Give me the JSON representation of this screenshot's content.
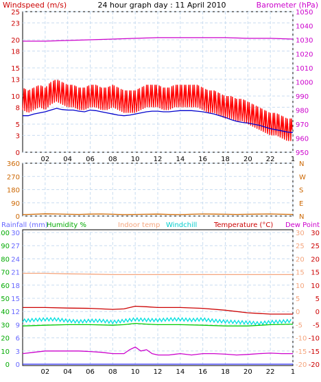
{
  "chart_data": [
    {
      "type": "line",
      "title": "24 hour graph day : 11 April 2010",
      "left_axis_label": "Windspeed (m/s)",
      "right_axis_label": "Barometer (hPa)",
      "x_ticks": [
        "02",
        "04",
        "06",
        "08",
        "10",
        "12",
        "14",
        "16",
        "18",
        "20",
        "22",
        "1"
      ],
      "x_range_hours": [
        0,
        24
      ],
      "left_ticks": [
        "0",
        "3",
        "5",
        "8",
        "10",
        "13",
        "15",
        "18",
        "20",
        "23",
        "25"
      ],
      "left_range": [
        0,
        25
      ],
      "right_ticks": [
        "950",
        "960",
        "970",
        "980",
        "990",
        "1000",
        "1010",
        "1020",
        "1030",
        "1040",
        "1050"
      ],
      "right_range": [
        950,
        1050
      ],
      "grid": true,
      "series": [
        {
          "name": "Windspeed (m/s)",
          "axis": "left",
          "color": "#ff0000",
          "style": "gust",
          "x": [
            0,
            0.5,
            1,
            1.5,
            2,
            2.5,
            3,
            3.5,
            4,
            4.5,
            5,
            5.5,
            6,
            6.5,
            7,
            7.5,
            8,
            8.5,
            9,
            9.5,
            10,
            10.5,
            11,
            11.5,
            12,
            12.5,
            13,
            13.5,
            14,
            14.5,
            15,
            15.5,
            16,
            16.5,
            17,
            17.5,
            18,
            18.5,
            19,
            19.5,
            20,
            20.5,
            21,
            21.5,
            22,
            22.5,
            23,
            23.5,
            24
          ],
          "values": [
            10,
            9.5,
            10,
            10.5,
            10,
            11,
            11.5,
            11,
            10.5,
            10.5,
            10,
            10,
            10.5,
            10.5,
            10,
            10,
            10.5,
            10,
            9.5,
            9.5,
            9.5,
            10,
            10.5,
            10.5,
            10.5,
            10,
            10,
            10.5,
            10.5,
            10.5,
            10.5,
            10.5,
            10,
            9.5,
            9.5,
            9,
            8.5,
            8.5,
            8,
            8,
            7.5,
            7,
            6.5,
            6,
            5.5,
            5.5,
            5,
            4.5,
            4.5
          ]
        },
        {
          "name": "Average windspeed",
          "axis": "left",
          "color": "#0000cc",
          "style": "line",
          "x": [
            0,
            0.5,
            1,
            1.5,
            2,
            2.5,
            3,
            3.5,
            4,
            4.5,
            5,
            5.5,
            6,
            6.5,
            7,
            7.5,
            8,
            8.5,
            9,
            9.5,
            10,
            10.5,
            11,
            11.5,
            12,
            12.5,
            13,
            13.5,
            14,
            14.5,
            15,
            15.5,
            16,
            16.5,
            17,
            17.5,
            18,
            18.5,
            19,
            19.5,
            20,
            20.5,
            21,
            21.5,
            22,
            22.5,
            23,
            23.5,
            24
          ],
          "values": [
            6.5,
            6.5,
            6.8,
            7,
            7.2,
            7.5,
            7.8,
            7.6,
            7.5,
            7.5,
            7.3,
            7.2,
            7.5,
            7.4,
            7.2,
            7,
            6.8,
            6.6,
            6.5,
            6.6,
            6.8,
            7,
            7.2,
            7.3,
            7.3,
            7.2,
            7.2,
            7.3,
            7.4,
            7.4,
            7.4,
            7.3,
            7.2,
            7,
            6.8,
            6.5,
            6.2,
            5.8,
            5.5,
            5.3,
            5.2,
            5,
            4.8,
            4.5,
            4.2,
            4,
            3.8,
            3.6,
            3.5
          ]
        },
        {
          "name": "Barometer (hPa)",
          "axis": "right",
          "color": "#cc00cc",
          "style": "line",
          "x": [
            0,
            2,
            4,
            6,
            8,
            10,
            12,
            14,
            16,
            18,
            20,
            22,
            24
          ],
          "values": [
            1029,
            1029,
            1029.5,
            1030,
            1030.5,
            1031,
            1031.5,
            1031.5,
            1031.5,
            1031.5,
            1031,
            1031,
            1030.5
          ]
        }
      ]
    },
    {
      "type": "scatter",
      "left_ticks": [
        "0",
        "90",
        "180",
        "270",
        "360"
      ],
      "left_range": [
        0,
        360
      ],
      "right_ticks": [
        "N",
        "W",
        "S",
        "E",
        "N"
      ],
      "grid": true,
      "series": [
        {
          "name": "Wind direction",
          "color": "#cc6600",
          "x": [
            0,
            1,
            2,
            3,
            4,
            5,
            6,
            7,
            8,
            9,
            10,
            11,
            12,
            13,
            14,
            15,
            16,
            17,
            18,
            19,
            20,
            21,
            22,
            23,
            24
          ],
          "values": [
            10,
            12,
            15,
            14,
            12,
            11,
            13,
            14,
            12,
            10,
            11,
            12,
            13,
            11,
            10,
            12,
            14,
            13,
            12,
            11,
            12,
            13,
            14,
            12,
            11
          ]
        }
      ]
    },
    {
      "type": "line",
      "legend": [
        "Rainfall (mm)",
        "Humidity %",
        "Indoor temp",
        "Windchill",
        "Temperature (°C)",
        "Dew Point"
      ],
      "x_ticks": [
        "02",
        "04",
        "06",
        "08",
        "10",
        "12",
        "14",
        "16",
        "18",
        "20",
        "22",
        "1"
      ],
      "x_range_hours": [
        0,
        24
      ],
      "humidity_ticks": [
        "0",
        "10",
        "20",
        "30",
        "40",
        "50",
        "60",
        "70",
        "80",
        "90",
        "100"
      ],
      "humidity_range": [
        0,
        100
      ],
      "rain_ticks": [
        "0",
        "3",
        "6",
        "9",
        "12",
        "15",
        "18",
        "21",
        "24",
        "27",
        "30"
      ],
      "rain_range": [
        0,
        30
      ],
      "temp_ticks": [
        "-20",
        "-15",
        "-10",
        "-5",
        "0",
        "5",
        "10",
        "15",
        "20",
        "25",
        "30"
      ],
      "temp_range": [
        -20,
        30
      ],
      "grid": true,
      "series": [
        {
          "name": "Indoor temp",
          "axis": "temp",
          "color": "#f4a47c",
          "x": [
            0,
            2,
            4,
            6,
            8,
            10,
            12,
            14,
            16,
            18,
            20,
            22,
            24
          ],
          "values": [
            14.5,
            14.5,
            14.3,
            14.2,
            14,
            14,
            14,
            14,
            14,
            14,
            14,
            14,
            14
          ]
        },
        {
          "name": "Temperature (°C)",
          "axis": "temp",
          "color": "#cc0000",
          "x": [
            0,
            2,
            4,
            6,
            8,
            9,
            10,
            11,
            12,
            14,
            16,
            18,
            20,
            22,
            24
          ],
          "values": [
            1.5,
            1.5,
            1.3,
            1.2,
            0.8,
            1,
            2,
            1.8,
            1.5,
            1.5,
            1.2,
            0.5,
            -0.5,
            -1,
            -1
          ]
        },
        {
          "name": "Windchill",
          "axis": "temp",
          "color": "#00e0e0",
          "x": [
            0,
            1,
            2,
            3,
            4,
            5,
            6,
            7,
            8,
            9,
            10,
            11,
            12,
            13,
            14,
            15,
            16,
            17,
            18,
            19,
            20,
            21,
            22,
            23,
            24
          ],
          "values": [
            -3.5,
            -3.2,
            -3,
            -3,
            -3.5,
            -3.8,
            -3.5,
            -3.5,
            -4,
            -3.5,
            -3,
            -3.2,
            -3.3,
            -3,
            -3,
            -3.2,
            -3,
            -3.5,
            -3.8,
            -4,
            -4.2,
            -4.5,
            -4,
            -3.8,
            -3.5
          ]
        },
        {
          "name": "Dew Point",
          "axis": "temp",
          "color": "#00cc00",
          "x": [
            0,
            2,
            4,
            6,
            8,
            9,
            10,
            11,
            12,
            14,
            16,
            18,
            20,
            22,
            24
          ],
          "values": [
            -5.5,
            -5.2,
            -5,
            -5,
            -5.2,
            -5,
            -4.5,
            -4.8,
            -5,
            -5,
            -5.2,
            -5.5,
            -5.5,
            -5,
            -4.8
          ]
        },
        {
          "name": "Dew Point",
          "axis": "temp",
          "color": "#cc00cc",
          "x": [
            0,
            1,
            2,
            3,
            4,
            5,
            6,
            7,
            8,
            9,
            9.5,
            10,
            10.5,
            11,
            11.5,
            12,
            13,
            14,
            15,
            16,
            17,
            18,
            19,
            20,
            21,
            22,
            23,
            24
          ],
          "values": [
            -16,
            -15.5,
            -15,
            -15,
            -15,
            -15,
            -15.2,
            -15.5,
            -16,
            -16,
            -14.5,
            -13.5,
            -15,
            -14.5,
            -16,
            -16.5,
            -16.5,
            -16,
            -16.5,
            -16,
            -16,
            -16.2,
            -16.5,
            -16.3,
            -16,
            -15.8,
            -16,
            -16
          ]
        },
        {
          "name": "Rainfall (mm)",
          "axis": "rain",
          "color": "#3333ff",
          "x": [
            0,
            24
          ],
          "values": [
            0,
            0
          ]
        }
      ]
    }
  ],
  "colors": {
    "axis": "#000000",
    "grid": "#c8dcf0",
    "left_axis_text": "#cc0000",
    "right_axis_text": "#cc00cc",
    "direction_text": "#cc6600",
    "rain_text": "#6666ff",
    "humidity_text": "#00aa00",
    "indoor_text": "#f4a47c",
    "windchill_text": "#00cccc",
    "temp_text": "#cc0000",
    "dew_text": "#cc00cc"
  }
}
